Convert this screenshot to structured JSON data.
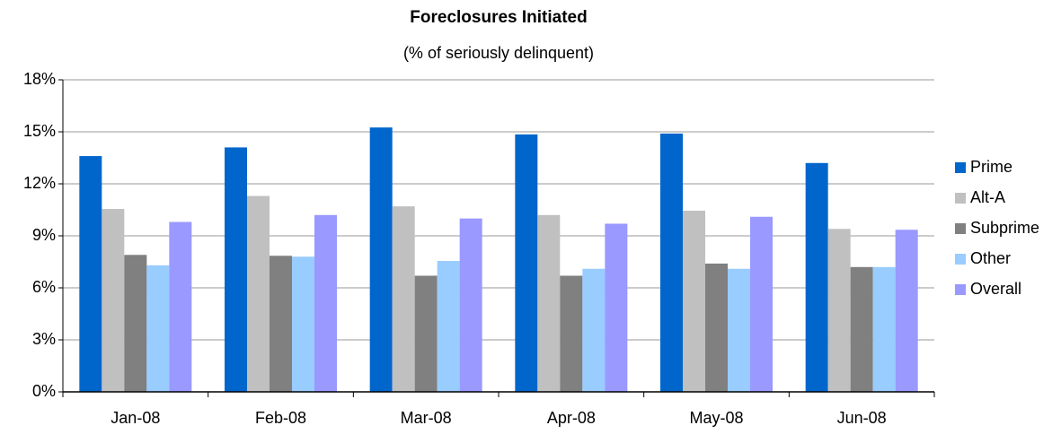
{
  "chart_data": {
    "type": "bar",
    "title": "Foreclosures Initiated",
    "subtitle": "(% of seriously delinquent)",
    "categories": [
      "Jan-08",
      "Feb-08",
      "Mar-08",
      "Apr-08",
      "May-08",
      "Jun-08"
    ],
    "series": [
      {
        "name": "Prime",
        "color": "#0066cc",
        "values": [
          13.6,
          14.1,
          15.25,
          14.85,
          14.9,
          13.2
        ]
      },
      {
        "name": "Alt-A",
        "color": "#c0c0c0",
        "values": [
          10.55,
          11.3,
          10.7,
          10.2,
          10.45,
          9.4
        ]
      },
      {
        "name": "Subprime",
        "color": "#808080",
        "values": [
          7.9,
          7.85,
          6.7,
          6.7,
          7.4,
          7.2
        ]
      },
      {
        "name": "Other",
        "color": "#99ccff",
        "values": [
          7.3,
          7.8,
          7.55,
          7.1,
          7.1,
          7.2
        ]
      },
      {
        "name": "Overall",
        "color": "#9999ff",
        "values": [
          9.8,
          10.2,
          10.0,
          9.7,
          10.1,
          9.35
        ]
      }
    ],
    "ylim": [
      0,
      18
    ],
    "yticks": [
      {
        "value": 0,
        "label": "0%"
      },
      {
        "value": 3,
        "label": "3%"
      },
      {
        "value": 6,
        "label": "6%"
      },
      {
        "value": 9,
        "label": "9%"
      },
      {
        "value": 12,
        "label": "12%"
      },
      {
        "value": 15,
        "label": "15%"
      },
      {
        "value": 18,
        "label": "18%"
      }
    ],
    "grid": true,
    "legend": "right"
  }
}
